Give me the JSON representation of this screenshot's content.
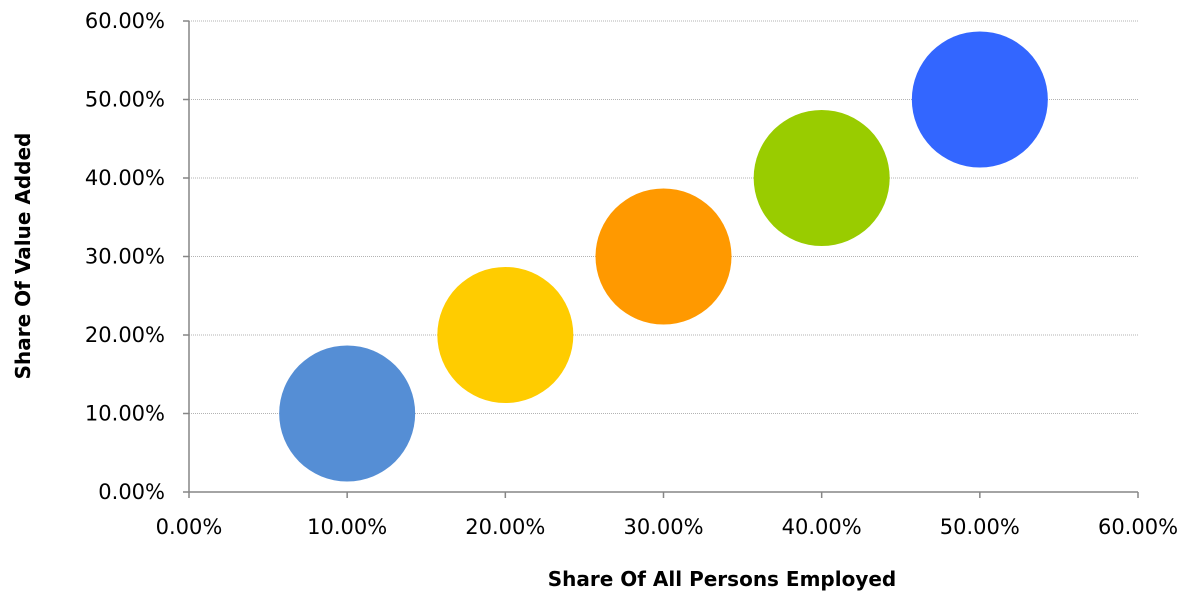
{
  "chart_data": {
    "type": "bubble",
    "title": "",
    "xlabel": "Share Of All Persons Employed",
    "ylabel": "Share Of Value Added",
    "xlim": [
      0,
      60
    ],
    "ylim": [
      0,
      60
    ],
    "x_ticks": [
      "0.00%",
      "10.00%",
      "20.00%",
      "30.00%",
      "40.00%",
      "50.00%",
      "60.00%"
    ],
    "y_ticks": [
      "0.00%",
      "10.00%",
      "20.00%",
      "30.00%",
      "40.00%",
      "50.00%",
      "60.00%"
    ],
    "grid": "horizontal",
    "legend": "none",
    "points": [
      {
        "x": 10,
        "y": 10,
        "color": "#558ed5"
      },
      {
        "x": 20,
        "y": 20,
        "color": "#ffcc00"
      },
      {
        "x": 30,
        "y": 30,
        "color": "#ff9900"
      },
      {
        "x": 40,
        "y": 40,
        "color": "#99cc00"
      },
      {
        "x": 50,
        "y": 50,
        "color": "#3366ff"
      }
    ]
  }
}
